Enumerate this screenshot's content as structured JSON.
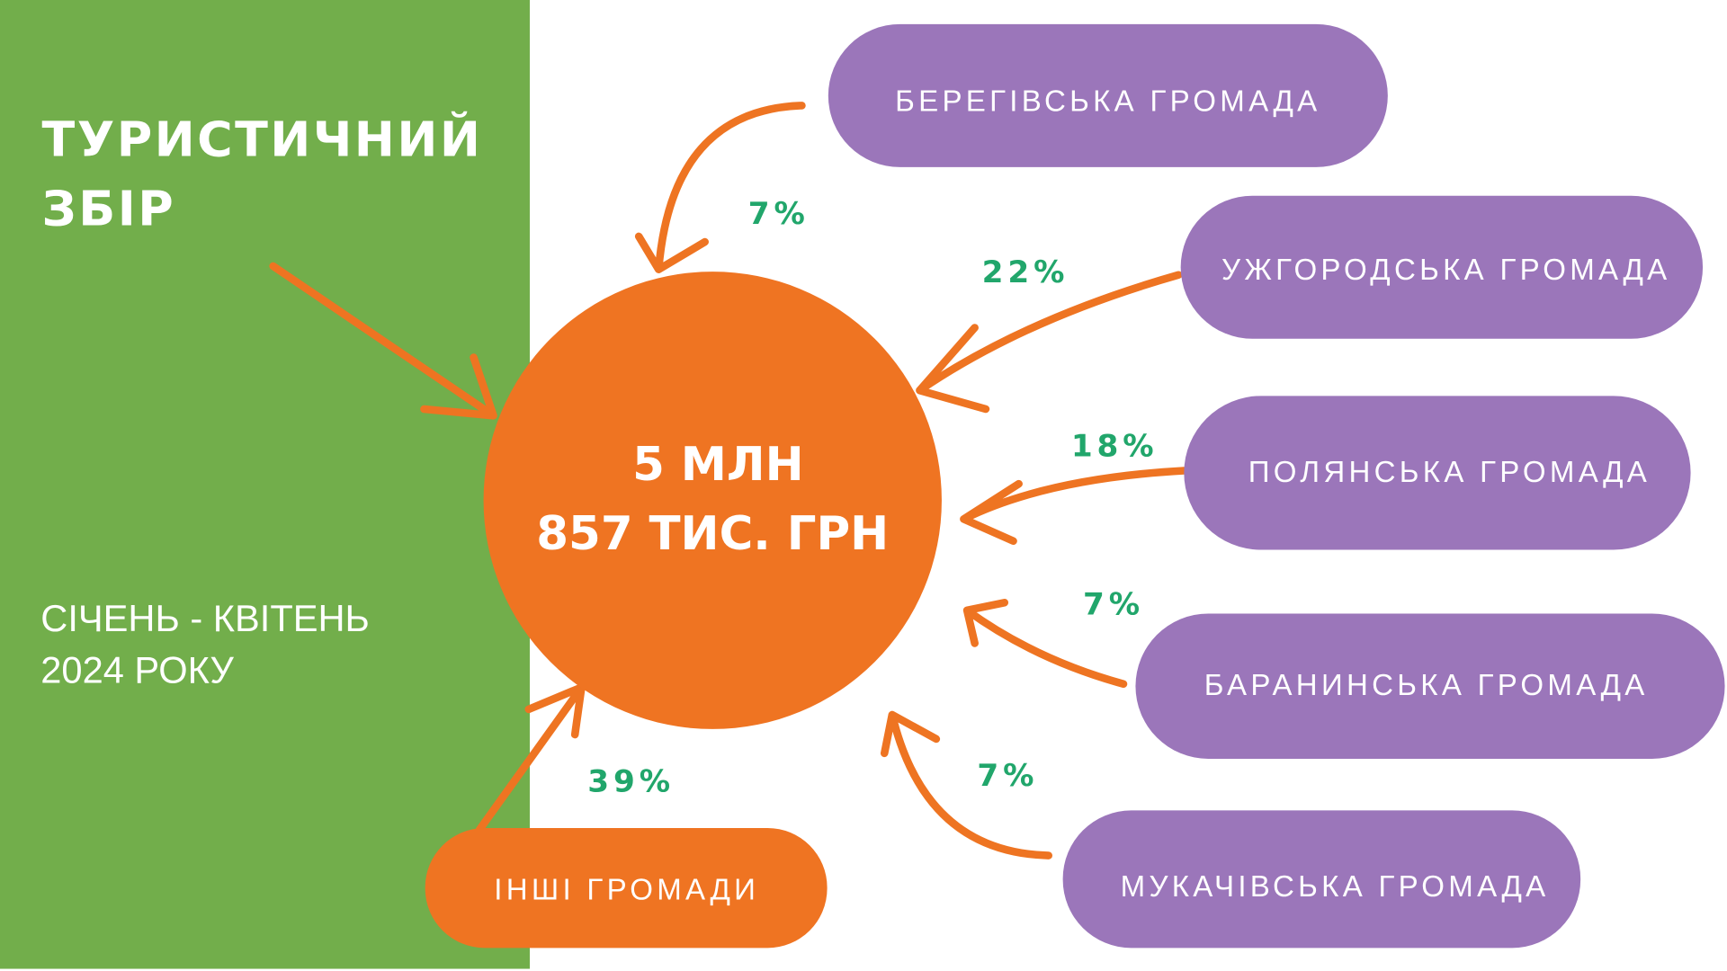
{
  "header": {
    "title": [
      "ТУРИСТИЧНИЙ",
      "ЗБІР"
    ],
    "period": [
      "СІЧЕНЬ - КВІТЕНЬ",
      "2024 РОКУ"
    ]
  },
  "center": {
    "lines": [
      "5 МЛН",
      "857 ТИС. ГРН"
    ]
  },
  "nodes": [
    {
      "label": "БЕРЕГІВСЬКА ГРОМАДА",
      "share": "7%"
    },
    {
      "label": "УЖГОРОДСЬКА ГРОМАДА",
      "share": "22%"
    },
    {
      "label": "ПОЛЯНСЬКА ГРОМАДА",
      "share": "18%"
    },
    {
      "label": "БАРАНИНСЬКА ГРОМАДА",
      "share": "7%"
    },
    {
      "label": "МУКАЧІВСЬКА ГРОМАДА",
      "share": "7%"
    },
    {
      "label": "ІНШІ ГРОМАДИ",
      "share": "39%"
    }
  ]
}
